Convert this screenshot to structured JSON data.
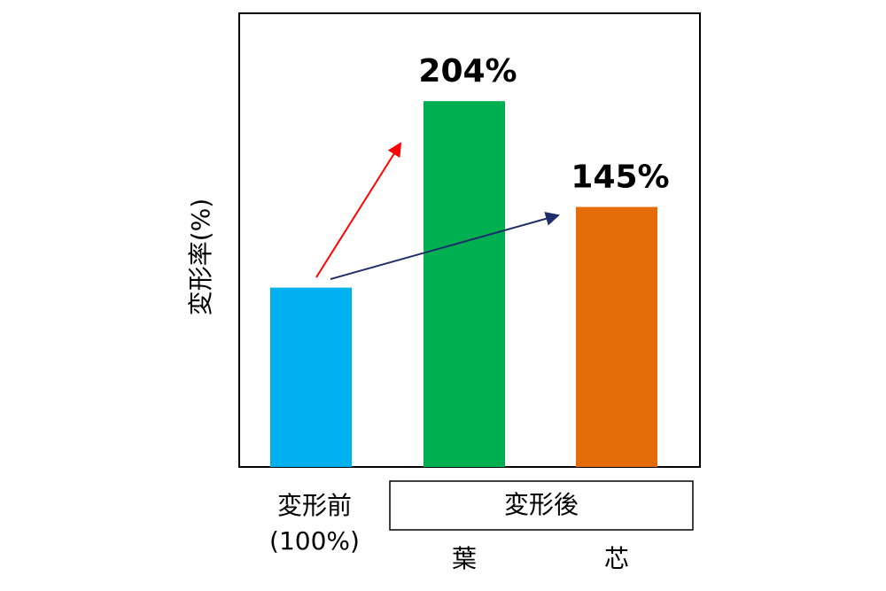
{
  "chart_data": {
    "type": "bar",
    "y_label": "変形率(%)",
    "categories": [
      "変形前",
      "葉",
      "芯"
    ],
    "values": [
      100,
      204,
      145
    ],
    "value_labels": [
      "(100%)",
      "204%",
      "145%"
    ],
    "colors": [
      "#00b0f0",
      "#00b050",
      "#e36c09"
    ],
    "group_label": "変形後",
    "ylim": [
      0,
      253
    ]
  }
}
